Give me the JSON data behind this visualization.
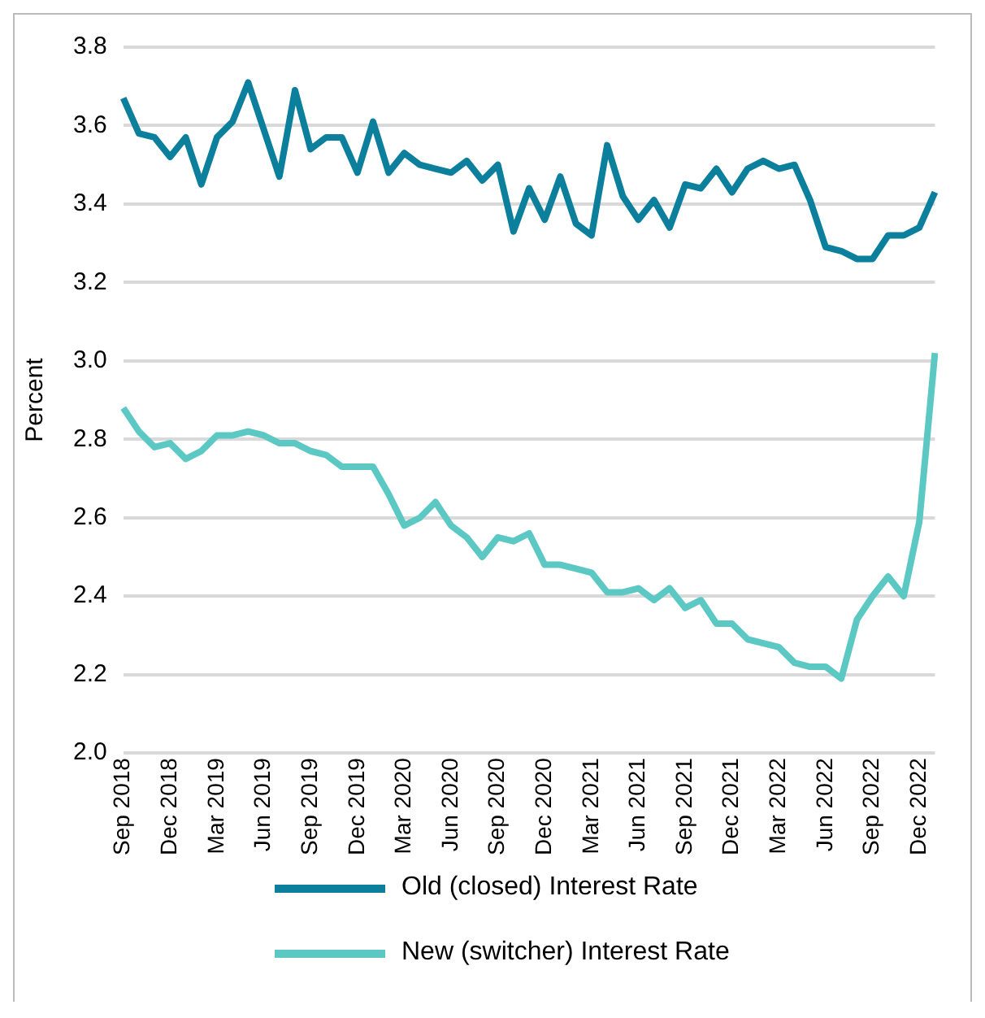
{
  "chart_data": {
    "type": "line",
    "ylabel": "Percent",
    "categories": [
      "Sep 2018",
      null,
      null,
      "Dec 2018",
      null,
      null,
      "Mar 2019",
      null,
      null,
      "Jun 2019",
      null,
      null,
      "Sep 2019",
      null,
      null,
      "Dec 2019",
      null,
      null,
      "Mar 2020",
      null,
      null,
      "Jun 2020",
      null,
      null,
      "Sep 2020",
      null,
      null,
      "Dec 2020",
      null,
      null,
      "Mar 2021",
      null,
      null,
      "Jun 2021",
      null,
      null,
      "Sep 2021",
      null,
      null,
      "Dec 2021",
      null,
      null,
      "Mar 2022",
      null,
      null,
      "Jun 2022",
      null,
      null,
      "Sep 2022",
      null,
      null,
      "Dec 2022",
      null
    ],
    "series": [
      {
        "name": "Old (closed) Interest Rate",
        "color": "#0b7f9c",
        "values": [
          3.67,
          3.58,
          3.57,
          3.52,
          3.57,
          3.45,
          3.57,
          3.61,
          3.71,
          3.59,
          3.47,
          3.69,
          3.54,
          3.57,
          3.57,
          3.48,
          3.61,
          3.48,
          3.53,
          3.5,
          3.49,
          3.48,
          3.51,
          3.46,
          3.5,
          3.33,
          3.44,
          3.36,
          3.47,
          3.35,
          3.32,
          3.55,
          3.42,
          3.36,
          3.41,
          3.34,
          3.45,
          3.44,
          3.49,
          3.43,
          3.49,
          3.51,
          3.49,
          3.5,
          3.41,
          3.29,
          3.28,
          3.26,
          3.26,
          3.32,
          3.32,
          3.34,
          3.43
        ]
      },
      {
        "name": "New (switcher) Interest Rate",
        "color": "#5cc8c4",
        "values": [
          2.88,
          2.82,
          2.78,
          2.79,
          2.75,
          2.77,
          2.81,
          2.81,
          2.82,
          2.81,
          2.79,
          2.79,
          2.77,
          2.76,
          2.73,
          2.73,
          2.73,
          2.66,
          2.58,
          2.6,
          2.64,
          2.58,
          2.55,
          2.5,
          2.55,
          2.54,
          2.56,
          2.48,
          2.48,
          2.47,
          2.46,
          2.41,
          2.41,
          2.42,
          2.39,
          2.42,
          2.37,
          2.39,
          2.33,
          2.33,
          2.29,
          2.28,
          2.27,
          2.23,
          2.22,
          2.22,
          2.19,
          2.34,
          2.4,
          2.45,
          2.4,
          2.59,
          3.02
        ]
      }
    ],
    "ylim": [
      2.0,
      3.8
    ],
    "yticks": [
      {
        "value": 2.0,
        "label": "2.0"
      },
      {
        "value": 2.2,
        "label": "2.2"
      },
      {
        "value": 2.4,
        "label": "2.4"
      },
      {
        "value": 2.6,
        "label": "2.6"
      },
      {
        "value": 2.8,
        "label": "2.8"
      },
      {
        "value": 3.0,
        "label": "3.0"
      },
      {
        "value": 3.2,
        "label": "3.2"
      },
      {
        "value": 3.4,
        "label": "3.4"
      },
      {
        "value": 3.6,
        "label": "3.6"
      },
      {
        "value": 3.8,
        "label": "3.8"
      }
    ],
    "grid": "y",
    "legend": "bottom",
    "marker": "none",
    "line_style": "solid"
  }
}
